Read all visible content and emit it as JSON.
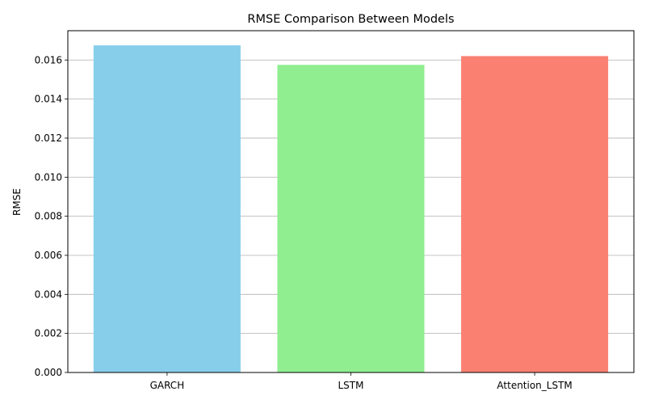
{
  "chart_data": {
    "type": "bar",
    "title": "RMSE Comparison Between Models",
    "xlabel": "",
    "ylabel": "RMSE",
    "categories": [
      "GARCH",
      "LSTM",
      "Attention_LSTM"
    ],
    "values": [
      0.01675,
      0.01575,
      0.0162
    ],
    "colors": [
      "#87ceeb",
      "#90ee90",
      "#fa8072"
    ],
    "ylim": [
      0,
      0.0175
    ],
    "yticks": [
      0.0,
      0.002,
      0.004,
      0.006,
      0.008,
      0.01,
      0.012,
      0.014,
      0.016
    ],
    "ytick_labels": [
      "0.000",
      "0.002",
      "0.004",
      "0.006",
      "0.008",
      "0.010",
      "0.012",
      "0.014",
      "0.016"
    ],
    "grid": "y"
  }
}
